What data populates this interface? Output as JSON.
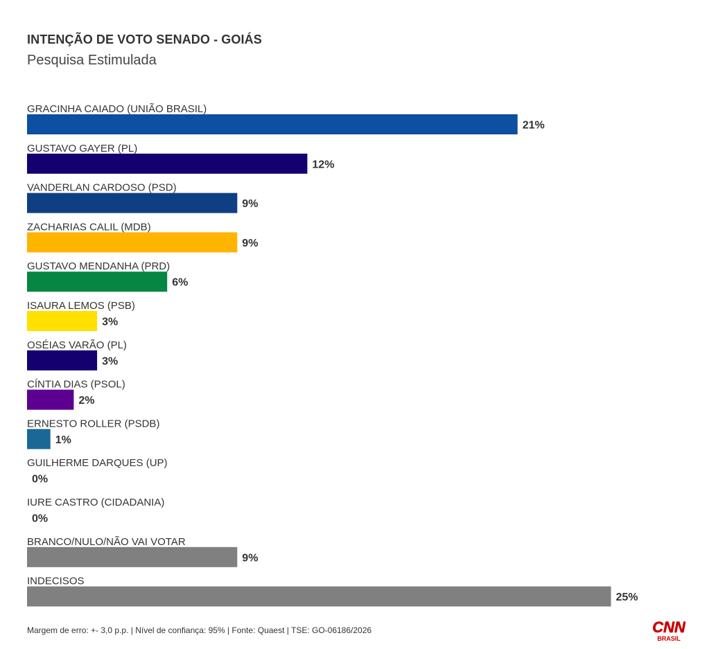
{
  "chart_data": {
    "type": "bar",
    "orientation": "horizontal",
    "title": "INTENÇÃO DE VOTO SENADO - GOIÁS",
    "subtitle": "Pesquisa Estimulada",
    "categories": [
      "GRACINHA CAIADO (UNIÃO BRASIL)",
      "GUSTAVO GAYER (PL)",
      "VANDERLAN CARDOSO (PSD)",
      "ZACHARIAS CALIL (MDB)",
      "GUSTAVO MENDANHA (PRD)",
      "ISAURA LEMOS (PSB)",
      "OSÉIAS VARÃO (PL)",
      "CÍNTIA DIAS (PSOL)",
      "ERNESTO ROLLER (PSDB)",
      "GUILHERME DARQUES (UP)",
      "IURE CASTRO (CIDADANIA)",
      "BRANCO/NULO/NÃO VAI VOTAR",
      "INDECISOS"
    ],
    "values": [
      21,
      12,
      9,
      9,
      6,
      3,
      3,
      2,
      1,
      0,
      0,
      9,
      25
    ],
    "value_labels": [
      "21%",
      "12%",
      "9%",
      "9%",
      "6%",
      "3%",
      "3%",
      "2%",
      "1%",
      "0%",
      "0%",
      "9%",
      "25%"
    ],
    "colors": [
      "#0d4fa0",
      "#150070",
      "#0e3f83",
      "#ffb400",
      "#078543",
      "#ffe000",
      "#150070",
      "#5c0091",
      "#1b6896",
      "#808080",
      "#808080",
      "#808080",
      "#808080"
    ],
    "xlim": [
      0,
      25
    ],
    "grid": false,
    "legend": "none"
  },
  "footer": {
    "note": "Margem de erro: +- 3,0 p.p. | Nível de confiança: 95% | Fonte: Quaest | TSE: GO-06186/2026"
  },
  "logo": {
    "brand": "CNN",
    "sub": "BRASIL",
    "color": "#cc0000"
  }
}
